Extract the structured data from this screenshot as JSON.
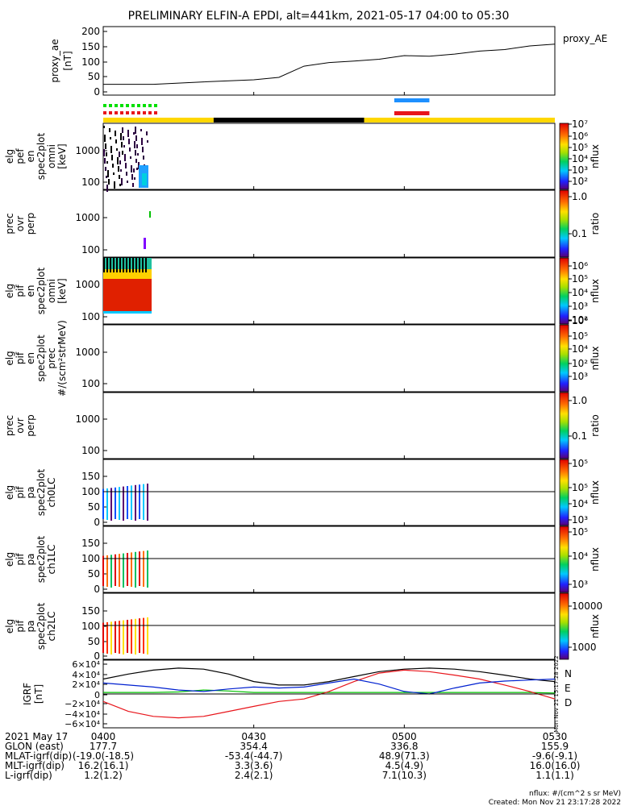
{
  "title": "PRELIMINARY ELFIN-A EPDI, alt=441km, 2021-05-17 04:00 to 05:30",
  "colors": {
    "sun": "#ffd700",
    "shadow": "#000000",
    "north_bar": "#1e90ff",
    "south_bar": "#e8151b",
    "sci_green": "#00e000",
    "sci_red": "#e8151b",
    "igrf_n": "#000000",
    "igrf_e": "#00c000",
    "igrf_d": "#e8151b",
    "igrf_total": "#0020d0"
  },
  "panels": [
    {
      "id": "ae",
      "ylabel": [
        "proxy_ae",
        "[nT]"
      ],
      "ticks": [
        "0",
        "50",
        "100",
        "150",
        "200"
      ],
      "side_label": "proxy_AE"
    },
    {
      "id": "pef",
      "ylabel": [
        "elg",
        "pef",
        "en",
        "spec2plot",
        "omni",
        "[keV]"
      ],
      "ticks": [
        "100",
        "1000"
      ],
      "cb_ticks": [
        "10²",
        "10³",
        "10⁴",
        "10⁵",
        "10⁶",
        "10⁷"
      ],
      "cb_label": "nflux"
    },
    {
      "id": "ratio1",
      "ylabel": [
        "prec",
        "ovr",
        "perp"
      ],
      "ticks": [
        "100",
        "1000"
      ],
      "cb_ticks": [
        "0.1",
        "1.0"
      ],
      "cb_label": "ratio"
    },
    {
      "id": "pif",
      "ylabel": [
        "elg",
        "pif",
        "en",
        "spec2plot",
        "omni",
        "[keV]"
      ],
      "ticks": [
        "100",
        "1000"
      ],
      "cb_ticks": [
        "10²",
        "10³",
        "10⁴",
        "10⁵",
        "10⁶"
      ],
      "cb_label": "nflux"
    },
    {
      "id": "pif_prec",
      "ylabel": [
        "elg",
        "pif",
        "en",
        "spec2plot",
        "prec",
        "#/(scm²strMeV)"
      ],
      "ticks": [
        "100",
        "1000"
      ],
      "cb_ticks": [
        "10²",
        "10³",
        "10⁴",
        "10⁵",
        "10⁶"
      ],
      "cb_label": "nflux"
    },
    {
      "id": "ratio2",
      "ylabel": [
        "prec",
        "ovr",
        "perp"
      ],
      "ticks": [
        "100",
        "1000"
      ],
      "cb_ticks": [
        "0.1",
        "1.0"
      ],
      "cb_label": "ratio"
    },
    {
      "id": "ch0",
      "ylabel": [
        "elg",
        "pif",
        "pa",
        "spec2plot",
        "ch0LC"
      ],
      "ticks": [
        "0",
        "50",
        "100",
        "150"
      ],
      "cb_ticks": [
        "10³",
        "10⁴",
        "10⁵",
        "10⁵"
      ],
      "cb_label": "nflux"
    },
    {
      "id": "ch1",
      "ylabel": [
        "elg",
        "pif",
        "pa",
        "spec2plot",
        "ch1LC"
      ],
      "ticks": [
        "0",
        "50",
        "100",
        "150"
      ],
      "cb_ticks": [
        "10³",
        "10⁴",
        "10⁵"
      ],
      "cb_label": "nflux"
    },
    {
      "id": "ch2",
      "ylabel": [
        "elg",
        "pif",
        "pa",
        "spec2plot",
        "ch2LC"
      ],
      "ticks": [
        "0",
        "50",
        "100",
        "150"
      ],
      "cb_ticks": [
        "1000",
        "10000"
      ],
      "cb_label": "nflux"
    },
    {
      "id": "igrf",
      "ylabel": [
        "IGRF",
        "[nT]"
      ],
      "ticks": [
        "−6×10⁴",
        "−4×10⁴",
        "−2×10⁴",
        "0",
        "2×10⁴",
        "4×10⁴",
        "6×10⁴"
      ],
      "legend": [
        "N",
        "E",
        "D"
      ]
    }
  ],
  "vertical_stamp": "Mon Nov 21 15:17:28 2022",
  "x_ticks": [
    "0400",
    "0430",
    "0500",
    "0530"
  ],
  "footer": {
    "rows": [
      {
        "label": "2021 May 17",
        "values": [
          "0400",
          "0430",
          "0500",
          "0530"
        ]
      },
      {
        "label": "GLON (east)",
        "values": [
          "177.7",
          "354.4",
          "336.8",
          "155.9"
        ]
      },
      {
        "label": "MLAT-igrf(dip)",
        "values": [
          "(-19.0(-18.5)",
          "-53.4(-44.7)",
          "48.9(71.3)",
          "-9.6(-9.1)"
        ]
      },
      {
        "label": "MLT-igrf(dip)",
        "values": [
          "16.2(16.1)",
          "3.3(3.6)",
          "4.5(4.9)",
          "16.0(16.0)"
        ]
      },
      {
        "label": "L-igrf(dip)",
        "values": [
          "1.2(1.2)",
          "2.4(2.1)",
          "7.1(10.3)",
          "1.1(1.1)"
        ]
      }
    ],
    "note1": "nflux: #/(cm^2 s sr MeV)",
    "note2": "Created: Mon Nov 21 23:17:28 2022"
  },
  "chart_data": [
    {
      "type": "line",
      "title": "proxy_AE",
      "ylabel": "proxy_ae [nT]",
      "x": [
        "04:00",
        "04:10",
        "04:20",
        "04:30",
        "04:35",
        "04:40",
        "04:45",
        "04:50",
        "04:55",
        "05:00",
        "05:05",
        "05:10",
        "05:15",
        "05:20",
        "05:25",
        "05:30"
      ],
      "values": [
        25,
        25,
        33,
        40,
        48,
        85,
        97,
        102,
        108,
        120,
        118,
        125,
        135,
        140,
        152,
        158
      ],
      "ylim": [
        0,
        200
      ]
    },
    {
      "type": "bar",
      "title": "orbit / science zone bars",
      "categories": [
        "sunlit",
        "shadow",
        "sunlit"
      ],
      "segments_minutes": [
        [
          0,
          22
        ],
        [
          22,
          52
        ],
        [
          52,
          90
        ]
      ],
      "north_zone_minutes": [
        58,
        65
      ],
      "science_zone_minutes": [
        0,
        11
      ]
    },
    {
      "type": "line",
      "title": "IGRF",
      "ylabel": "IGRF [nT]",
      "ylim": [
        -60000,
        60000
      ],
      "x_minutes": [
        0,
        5,
        10,
        15,
        20,
        25,
        30,
        35,
        40,
        45,
        50,
        55,
        60,
        65,
        70,
        75,
        80,
        85,
        90
      ],
      "series": [
        {
          "name": "N",
          "values": [
            30000,
            40000,
            48000,
            52000,
            50000,
            40000,
            25000,
            18000,
            18000,
            25000,
            35000,
            45000,
            50000,
            52000,
            50000,
            45000,
            38000,
            30000,
            25000
          ]
        },
        {
          "name": "E",
          "values": [
            3000,
            3000,
            3000,
            4000,
            8000,
            6000,
            3000,
            3000,
            3000,
            3000,
            3000,
            3000,
            3000,
            3000,
            3000,
            3000,
            3000,
            3000,
            2000
          ]
        },
        {
          "name": "D",
          "values": [
            -15000,
            -35000,
            -45000,
            -48000,
            -45000,
            -35000,
            -25000,
            -15000,
            -10000,
            5000,
            25000,
            42000,
            48000,
            45000,
            38000,
            30000,
            18000,
            5000,
            -10000
          ]
        },
        {
          "values": [
            22000,
            18000,
            14000,
            8000,
            5000,
            10000,
            14000,
            12000,
            14000,
            22000,
            30000,
            20000,
            5000,
            0,
            12000,
            22000,
            26000,
            28000,
            30000
          ]
        }
      ]
    }
  ]
}
